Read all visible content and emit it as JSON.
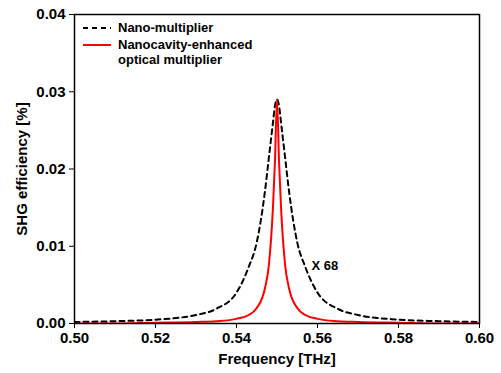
{
  "chart_data": {
    "type": "line",
    "x_label": "Frequency [THz]",
    "y_label": "SHG efficiency [%]",
    "xlim": [
      0.5,
      0.6
    ],
    "ylim": [
      0.0,
      0.04
    ],
    "xticks": [
      {
        "value": 0.5,
        "label": "0.50"
      },
      {
        "value": 0.52,
        "label": "0.52"
      },
      {
        "value": 0.54,
        "label": "0.54"
      },
      {
        "value": 0.56,
        "label": "0.56"
      },
      {
        "value": 0.58,
        "label": "0.58"
      },
      {
        "value": 0.6,
        "label": "0.60"
      }
    ],
    "yticks": [
      {
        "value": 0.0,
        "label": "0.00"
      },
      {
        "value": 0.01,
        "label": "0.01"
      },
      {
        "value": 0.02,
        "label": "0.02"
      },
      {
        "value": 0.03,
        "label": "0.03"
      },
      {
        "value": 0.04,
        "label": "0.04"
      }
    ],
    "legend": "top-left",
    "grid": false,
    "x": [
      0.5,
      0.51,
      0.52,
      0.53,
      0.535,
      0.54,
      0.543,
      0.545,
      0.547,
      0.548,
      0.549,
      0.5495,
      0.55,
      0.5505,
      0.551,
      0.552,
      0.553,
      0.555,
      0.557,
      0.56,
      0.565,
      0.57,
      0.58,
      0.59,
      0.6
    ],
    "series": [
      {
        "name": "Nano-multiplier",
        "color": "#000000",
        "line_style": "dashed",
        "values": [
          0.0002,
          0.0003,
          0.0005,
          0.0011,
          0.0019,
          0.004,
          0.0073,
          0.0105,
          0.017,
          0.0215,
          0.026,
          0.0282,
          0.029,
          0.0282,
          0.026,
          0.0215,
          0.017,
          0.0105,
          0.0073,
          0.004,
          0.0019,
          0.0011,
          0.0005,
          0.0003,
          0.0002
        ]
      },
      {
        "name": "Nanocavity-enhanced optical multiplier",
        "color": "#ff0000",
        "line_style": "solid",
        "values": [
          0,
          0,
          0.0001,
          0.0002,
          0.0003,
          0.0006,
          0.0011,
          0.002,
          0.0045,
          0.0076,
          0.015,
          0.021,
          0.029,
          0.021,
          0.015,
          0.0076,
          0.0045,
          0.002,
          0.0011,
          0.0006,
          0.0003,
          0.0002,
          0.0001,
          0,
          0
        ]
      }
    ],
    "annotations": [
      {
        "text": "X 68",
        "x": 0.5585,
        "y": 0.0075
      }
    ]
  }
}
